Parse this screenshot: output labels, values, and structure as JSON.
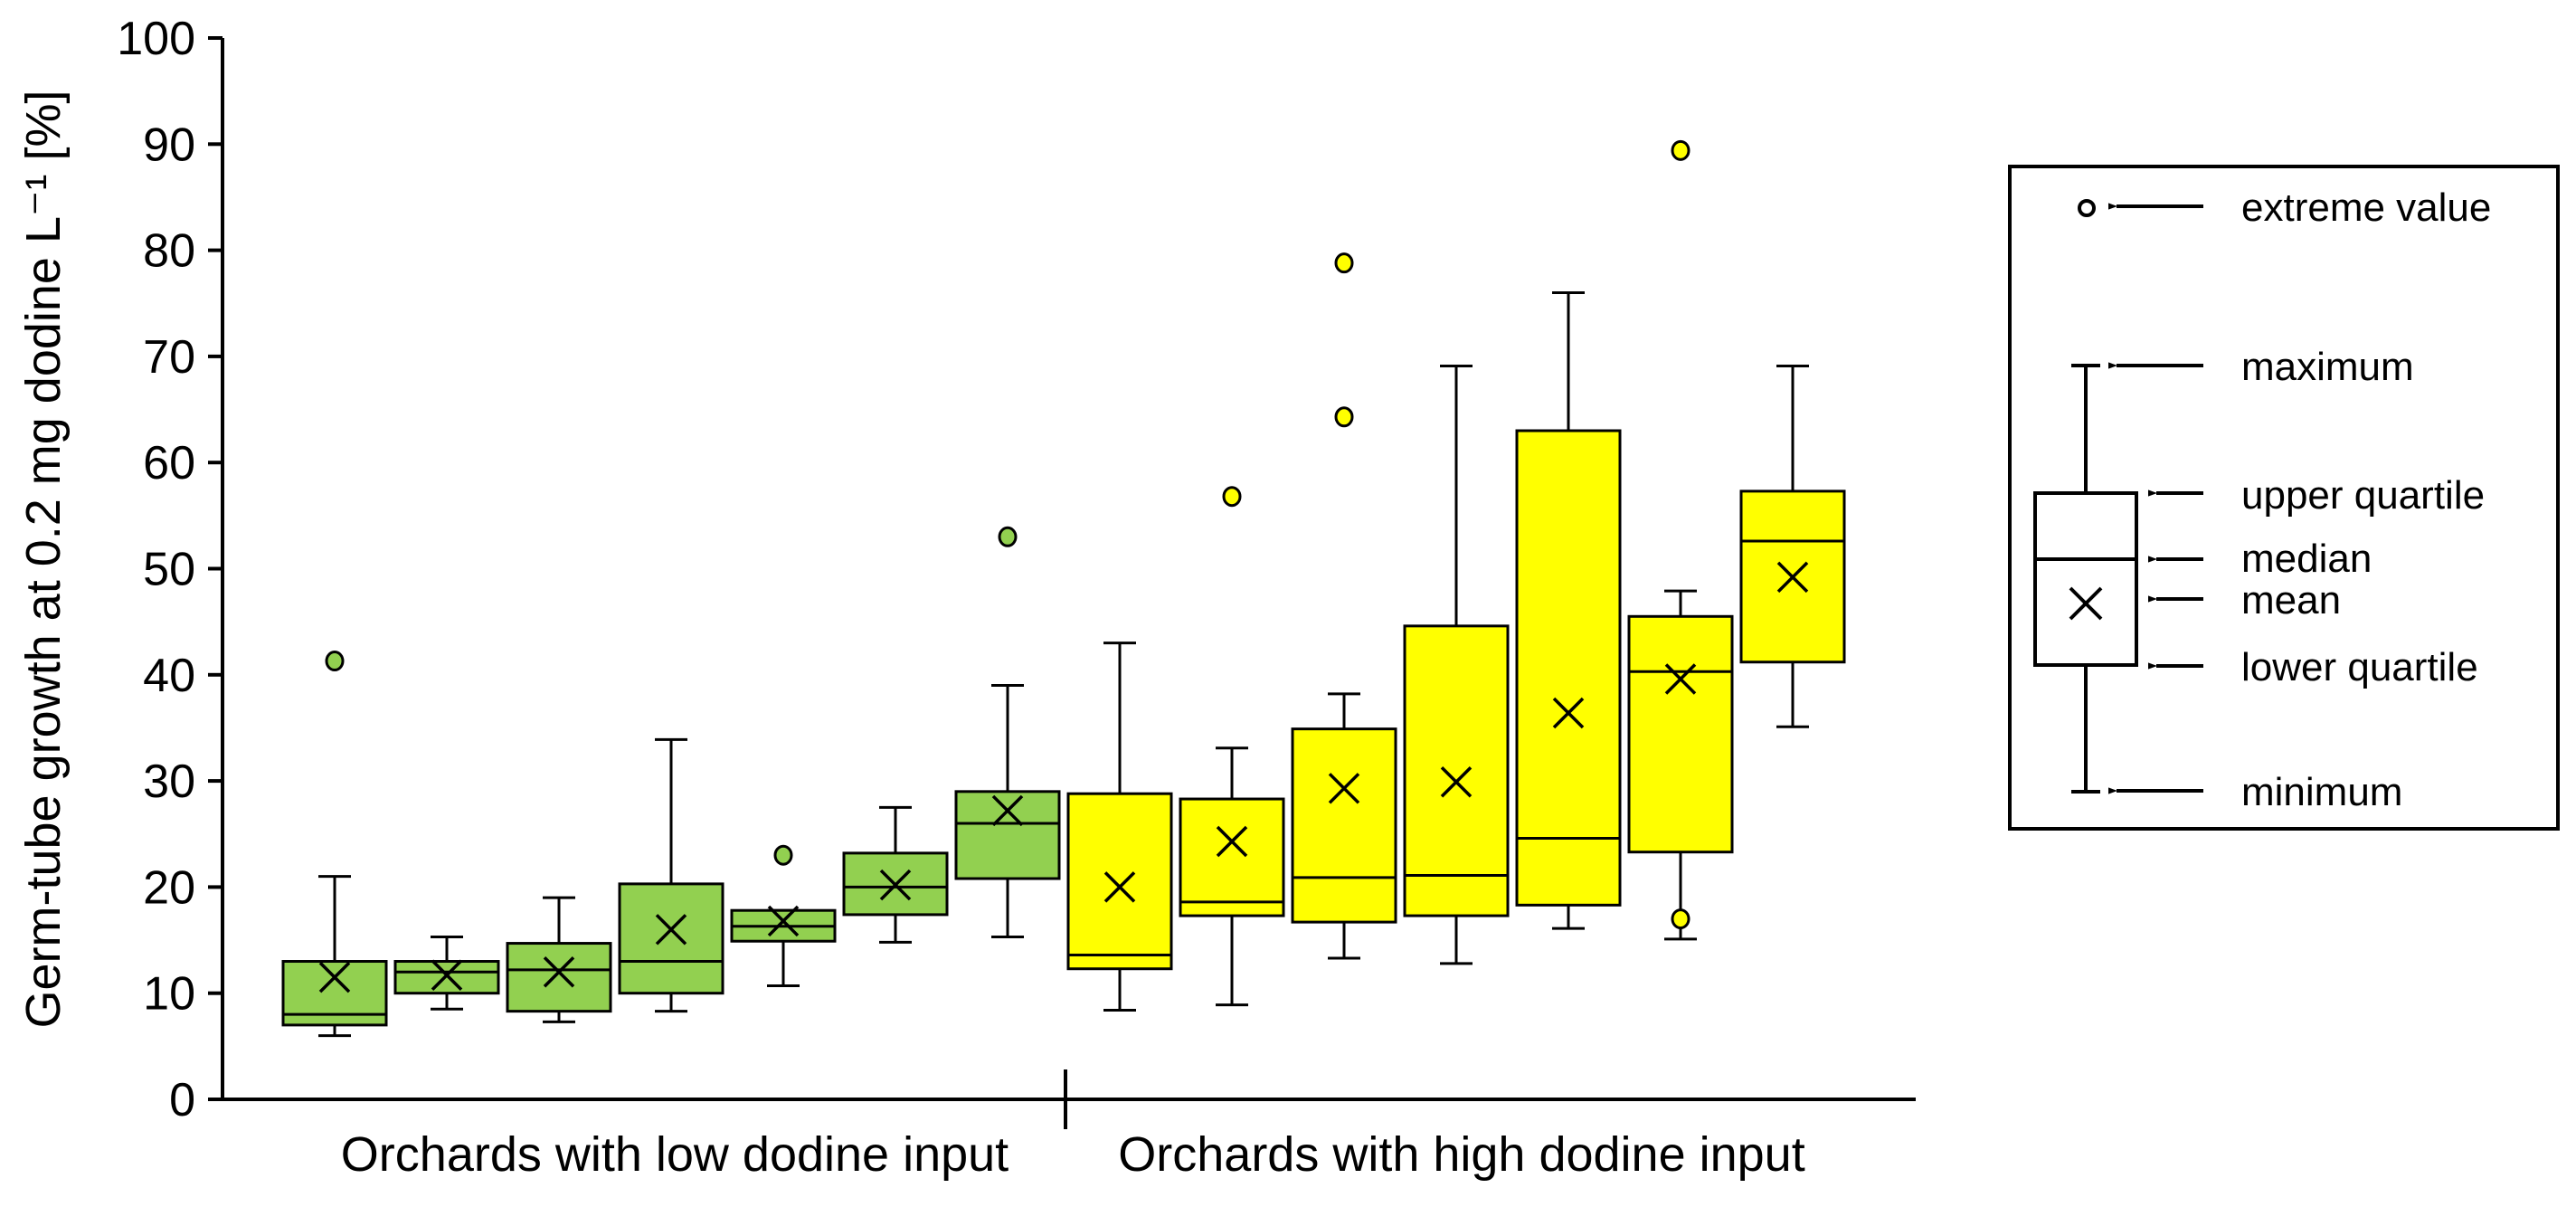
{
  "chart_data": {
    "type": "box",
    "ylabel": "Germ-tube growth at 0.2 mg dodine L⁻¹ [%]",
    "ylim": [
      0,
      100
    ],
    "yticks": [
      "0",
      "10",
      "20",
      "30",
      "40",
      "50",
      "60",
      "70",
      "80",
      "90",
      "100"
    ],
    "grid": false,
    "groups": [
      {
        "label": "Orchards with low dodine input",
        "color": "#92d050"
      },
      {
        "label": "Orchards with high dodine input",
        "color": "#ffff00"
      }
    ],
    "boxes": [
      {
        "group": 0,
        "min": 6,
        "q1": 7,
        "median": 8,
        "q3": 13,
        "max": 21,
        "mean": 11.5,
        "outliers": [
          41.3
        ]
      },
      {
        "group": 0,
        "min": 8.5,
        "q1": 10,
        "median": 12,
        "q3": 13,
        "max": 15.3,
        "mean": 11.7,
        "outliers": []
      },
      {
        "group": 0,
        "min": 7.3,
        "q1": 8.3,
        "median": 12.2,
        "q3": 14.7,
        "max": 19,
        "mean": 12,
        "outliers": []
      },
      {
        "group": 0,
        "min": 8.3,
        "q1": 10,
        "median": 13,
        "q3": 20.3,
        "max": 33.9,
        "mean": 16,
        "outliers": []
      },
      {
        "group": 0,
        "min": 10.7,
        "q1": 14.9,
        "median": 16.3,
        "q3": 17.8,
        "max": 17.8,
        "mean": 16.8,
        "outliers": [
          23
        ]
      },
      {
        "group": 0,
        "min": 14.8,
        "q1": 17.4,
        "median": 20,
        "q3": 23.2,
        "max": 27.5,
        "mean": 20.2,
        "outliers": []
      },
      {
        "group": 0,
        "min": 15.3,
        "q1": 20.8,
        "median": 26,
        "q3": 29,
        "max": 39,
        "mean": 27.2,
        "outliers": [
          53
        ]
      },
      {
        "group": 1,
        "min": 8.4,
        "q1": 12.3,
        "median": 13.6,
        "q3": 28.8,
        "max": 43,
        "mean": 20,
        "outliers": []
      },
      {
        "group": 1,
        "min": 8.9,
        "q1": 17.3,
        "median": 18.6,
        "q3": 28.3,
        "max": 33.1,
        "mean": 24.3,
        "outliers": [
          56.8
        ]
      },
      {
        "group": 1,
        "min": 13.3,
        "q1": 16.7,
        "median": 20.9,
        "q3": 34.9,
        "max": 38.2,
        "mean": 29.3,
        "outliers": [
          64.3,
          78.8
        ]
      },
      {
        "group": 1,
        "min": 12.8,
        "q1": 17.3,
        "median": 21.1,
        "q3": 44.6,
        "max": 69.1,
        "mean": 29.9,
        "outliers": []
      },
      {
        "group": 1,
        "min": 16.1,
        "q1": 18.3,
        "median": 24.6,
        "q3": 63,
        "max": 76,
        "mean": 36.4,
        "outliers": []
      },
      {
        "group": 1,
        "min": 15.1,
        "q1": 23.3,
        "median": 40.3,
        "q3": 45.5,
        "max": 47.9,
        "mean": 39.6,
        "outliers": [
          17,
          89.4
        ]
      },
      {
        "group": 1,
        "min": 35.1,
        "q1": 41.2,
        "median": 52.6,
        "q3": 57.3,
        "max": 69.1,
        "mean": 49.2,
        "outliers": []
      }
    ],
    "legend": {
      "position": "right",
      "items": {
        "extreme": "extreme value",
        "maximum": "maximum",
        "upper_quartile": "upper quartile",
        "median": "median",
        "mean": "mean",
        "lower_quartile": "lower quartile",
        "minimum": "minimum"
      }
    }
  }
}
